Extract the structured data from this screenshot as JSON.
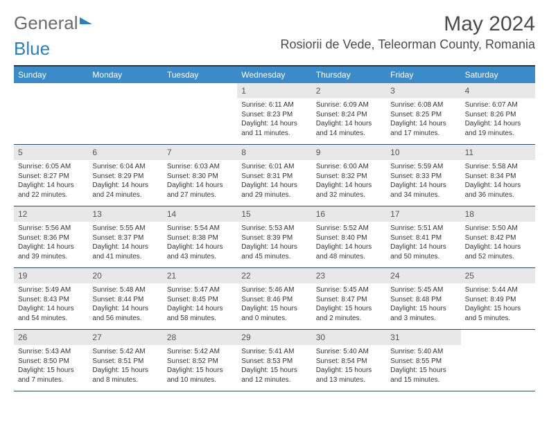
{
  "logo": {
    "part1": "General",
    "part2": "Blue"
  },
  "title": "May 2024",
  "location": "Rosiorii de Vede, Teleorman County, Romania",
  "day_headers": [
    "Sunday",
    "Monday",
    "Tuesday",
    "Wednesday",
    "Thursday",
    "Friday",
    "Saturday"
  ],
  "colors": {
    "header_bg": "#3b8bc8",
    "header_text": "#ffffff",
    "daynum_bg": "#e8e8e8",
    "border": "#2a4a6a",
    "text": "#333333"
  },
  "typography": {
    "title_fontsize": 30,
    "location_fontsize": 18,
    "dayheader_fontsize": 12,
    "daynum_fontsize": 12,
    "detail_fontsize": 10
  },
  "weeks": [
    [
      {
        "n": "",
        "sr": "",
        "ss": "",
        "dl": ""
      },
      {
        "n": "",
        "sr": "",
        "ss": "",
        "dl": ""
      },
      {
        "n": "",
        "sr": "",
        "ss": "",
        "dl": ""
      },
      {
        "n": "1",
        "sr": "Sunrise: 6:11 AM",
        "ss": "Sunset: 8:23 PM",
        "dl": "Daylight: 14 hours and 11 minutes."
      },
      {
        "n": "2",
        "sr": "Sunrise: 6:09 AM",
        "ss": "Sunset: 8:24 PM",
        "dl": "Daylight: 14 hours and 14 minutes."
      },
      {
        "n": "3",
        "sr": "Sunrise: 6:08 AM",
        "ss": "Sunset: 8:25 PM",
        "dl": "Daylight: 14 hours and 17 minutes."
      },
      {
        "n": "4",
        "sr": "Sunrise: 6:07 AM",
        "ss": "Sunset: 8:26 PM",
        "dl": "Daylight: 14 hours and 19 minutes."
      }
    ],
    [
      {
        "n": "5",
        "sr": "Sunrise: 6:05 AM",
        "ss": "Sunset: 8:27 PM",
        "dl": "Daylight: 14 hours and 22 minutes."
      },
      {
        "n": "6",
        "sr": "Sunrise: 6:04 AM",
        "ss": "Sunset: 8:29 PM",
        "dl": "Daylight: 14 hours and 24 minutes."
      },
      {
        "n": "7",
        "sr": "Sunrise: 6:03 AM",
        "ss": "Sunset: 8:30 PM",
        "dl": "Daylight: 14 hours and 27 minutes."
      },
      {
        "n": "8",
        "sr": "Sunrise: 6:01 AM",
        "ss": "Sunset: 8:31 PM",
        "dl": "Daylight: 14 hours and 29 minutes."
      },
      {
        "n": "9",
        "sr": "Sunrise: 6:00 AM",
        "ss": "Sunset: 8:32 PM",
        "dl": "Daylight: 14 hours and 32 minutes."
      },
      {
        "n": "10",
        "sr": "Sunrise: 5:59 AM",
        "ss": "Sunset: 8:33 PM",
        "dl": "Daylight: 14 hours and 34 minutes."
      },
      {
        "n": "11",
        "sr": "Sunrise: 5:58 AM",
        "ss": "Sunset: 8:34 PM",
        "dl": "Daylight: 14 hours and 36 minutes."
      }
    ],
    [
      {
        "n": "12",
        "sr": "Sunrise: 5:56 AM",
        "ss": "Sunset: 8:36 PM",
        "dl": "Daylight: 14 hours and 39 minutes."
      },
      {
        "n": "13",
        "sr": "Sunrise: 5:55 AM",
        "ss": "Sunset: 8:37 PM",
        "dl": "Daylight: 14 hours and 41 minutes."
      },
      {
        "n": "14",
        "sr": "Sunrise: 5:54 AM",
        "ss": "Sunset: 8:38 PM",
        "dl": "Daylight: 14 hours and 43 minutes."
      },
      {
        "n": "15",
        "sr": "Sunrise: 5:53 AM",
        "ss": "Sunset: 8:39 PM",
        "dl": "Daylight: 14 hours and 45 minutes."
      },
      {
        "n": "16",
        "sr": "Sunrise: 5:52 AM",
        "ss": "Sunset: 8:40 PM",
        "dl": "Daylight: 14 hours and 48 minutes."
      },
      {
        "n": "17",
        "sr": "Sunrise: 5:51 AM",
        "ss": "Sunset: 8:41 PM",
        "dl": "Daylight: 14 hours and 50 minutes."
      },
      {
        "n": "18",
        "sr": "Sunrise: 5:50 AM",
        "ss": "Sunset: 8:42 PM",
        "dl": "Daylight: 14 hours and 52 minutes."
      }
    ],
    [
      {
        "n": "19",
        "sr": "Sunrise: 5:49 AM",
        "ss": "Sunset: 8:43 PM",
        "dl": "Daylight: 14 hours and 54 minutes."
      },
      {
        "n": "20",
        "sr": "Sunrise: 5:48 AM",
        "ss": "Sunset: 8:44 PM",
        "dl": "Daylight: 14 hours and 56 minutes."
      },
      {
        "n": "21",
        "sr": "Sunrise: 5:47 AM",
        "ss": "Sunset: 8:45 PM",
        "dl": "Daylight: 14 hours and 58 minutes."
      },
      {
        "n": "22",
        "sr": "Sunrise: 5:46 AM",
        "ss": "Sunset: 8:46 PM",
        "dl": "Daylight: 15 hours and 0 minutes."
      },
      {
        "n": "23",
        "sr": "Sunrise: 5:45 AM",
        "ss": "Sunset: 8:47 PM",
        "dl": "Daylight: 15 hours and 2 minutes."
      },
      {
        "n": "24",
        "sr": "Sunrise: 5:45 AM",
        "ss": "Sunset: 8:48 PM",
        "dl": "Daylight: 15 hours and 3 minutes."
      },
      {
        "n": "25",
        "sr": "Sunrise: 5:44 AM",
        "ss": "Sunset: 8:49 PM",
        "dl": "Daylight: 15 hours and 5 minutes."
      }
    ],
    [
      {
        "n": "26",
        "sr": "Sunrise: 5:43 AM",
        "ss": "Sunset: 8:50 PM",
        "dl": "Daylight: 15 hours and 7 minutes."
      },
      {
        "n": "27",
        "sr": "Sunrise: 5:42 AM",
        "ss": "Sunset: 8:51 PM",
        "dl": "Daylight: 15 hours and 8 minutes."
      },
      {
        "n": "28",
        "sr": "Sunrise: 5:42 AM",
        "ss": "Sunset: 8:52 PM",
        "dl": "Daylight: 15 hours and 10 minutes."
      },
      {
        "n": "29",
        "sr": "Sunrise: 5:41 AM",
        "ss": "Sunset: 8:53 PM",
        "dl": "Daylight: 15 hours and 12 minutes."
      },
      {
        "n": "30",
        "sr": "Sunrise: 5:40 AM",
        "ss": "Sunset: 8:54 PM",
        "dl": "Daylight: 15 hours and 13 minutes."
      },
      {
        "n": "31",
        "sr": "Sunrise: 5:40 AM",
        "ss": "Sunset: 8:55 PM",
        "dl": "Daylight: 15 hours and 15 minutes."
      },
      {
        "n": "",
        "sr": "",
        "ss": "",
        "dl": ""
      }
    ]
  ]
}
